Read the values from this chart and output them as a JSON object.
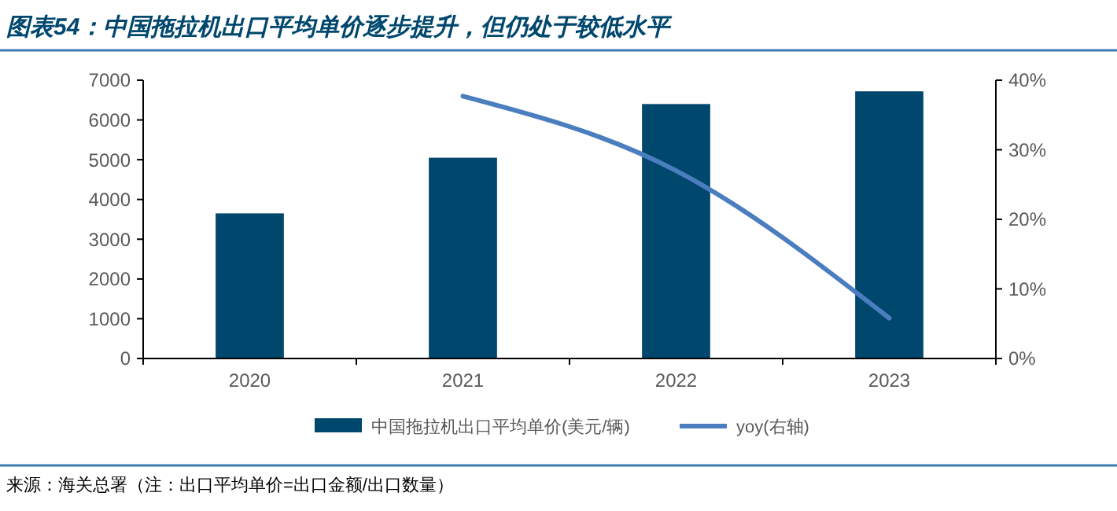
{
  "chart_data": {
    "type": "bar",
    "title": "图表54：中国拖拉机出口平均单价逐步提升，但仍处于较低水平",
    "categories": [
      "2020",
      "2021",
      "2022",
      "2023"
    ],
    "series": [
      {
        "name": "中国拖拉机出口平均单价(美元/辆)",
        "color": "#00476e",
        "values": [
          3650,
          5050,
          6400,
          6720
        ]
      },
      {
        "name": "yoy(右轴)",
        "type": "line",
        "axis": "y2",
        "color": "#4a7ebf",
        "values": [
          null,
          37.7,
          27,
          5.8
        ]
      }
    ],
    "ylim": [
      0,
      7000
    ],
    "yticks": [
      0,
      1000,
      2000,
      3000,
      4000,
      5000,
      6000,
      7000
    ],
    "y2lim": [
      0,
      40
    ],
    "y2ticks": [
      {
        "value": 0,
        "label": "0%"
      },
      {
        "value": 10,
        "label": "10%"
      },
      {
        "value": 20,
        "label": "20%"
      },
      {
        "value": 30,
        "label": "30%"
      },
      {
        "value": 40,
        "label": "40%"
      }
    ],
    "legend": "bottom",
    "grid": false,
    "annotations": [
      "来源：海关总署（注：出口平均单价=出口金额/出口数量）"
    ]
  }
}
